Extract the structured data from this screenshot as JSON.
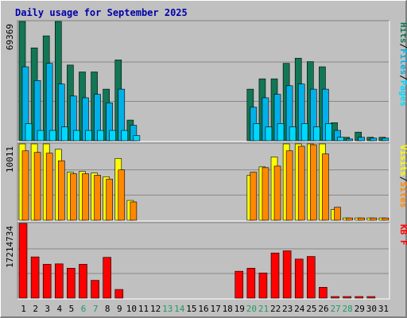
{
  "title": "Daily usage for September 2025",
  "colors": {
    "background": "#c0c0c0",
    "frame_light": "#ffffff",
    "frame_dark": "#808080",
    "plot_bg": "#c0c0c0",
    "gridline": "#888888",
    "title": "#0000aa",
    "weekday_label": "#000000",
    "weekend_label": "#229966",
    "hits": "#117755",
    "files": "#00b0e8",
    "pages": "#00d8ff",
    "visits": "#ffff00",
    "sites": "#ff8800",
    "kbytes": "#ff0000",
    "legend_separator": "#000000"
  },
  "chart_data": [
    {
      "type": "bar",
      "panel": "hits-files-pages",
      "ymax_label": "69369",
      "ylim": [
        0,
        69369
      ],
      "legend": [
        {
          "label": "Hits",
          "color_key": "hits"
        },
        {
          "label": "Files",
          "color_key": "files"
        },
        {
          "label": "Pages",
          "color_key": "pages"
        }
      ],
      "legend_separator": "/",
      "series": [
        {
          "name": "Hits",
          "values": [
            69369,
            54000,
            61000,
            69369,
            44000,
            40000,
            40000,
            30000,
            47000,
            12000,
            0,
            0,
            0,
            0,
            0,
            0,
            0,
            0,
            0,
            30000,
            36000,
            36000,
            45000,
            48000,
            46000,
            43000,
            10500,
            2000,
            5000,
            2000,
            2000
          ]
        },
        {
          "name": "Files",
          "values": [
            43000,
            35000,
            45000,
            33000,
            26000,
            25000,
            27000,
            22000,
            30000,
            9000,
            0,
            0,
            0,
            0,
            0,
            0,
            0,
            0,
            0,
            19500,
            25000,
            27000,
            32000,
            33000,
            30000,
            30000,
            6000,
            1000,
            2000,
            1500,
            1500
          ]
        },
        {
          "name": "Pages",
          "values": [
            10000,
            6000,
            6000,
            8000,
            6000,
            6000,
            6000,
            6000,
            6000,
            3000,
            0,
            0,
            0,
            0,
            0,
            0,
            0,
            0,
            0,
            10000,
            8000,
            10000,
            8000,
            10000,
            8000,
            10000,
            2000,
            0,
            0,
            0,
            0
          ]
        }
      ]
    },
    {
      "type": "bar",
      "panel": "visits-sites",
      "ymax_label": "10011",
      "ylim": [
        0,
        10011
      ],
      "legend": [
        {
          "label": "Visits",
          "color_key": "visits"
        },
        {
          "label": "Sites",
          "color_key": "sites"
        }
      ],
      "legend_separator": "/",
      "series": [
        {
          "name": "Visits",
          "values": [
            10011,
            10011,
            10011,
            9300,
            6300,
            6400,
            6200,
            5700,
            8100,
            2600,
            0,
            0,
            0,
            0,
            0,
            0,
            0,
            0,
            0,
            5900,
            7000,
            8300,
            10011,
            10011,
            10011,
            10011,
            1400,
            300,
            300,
            300,
            300
          ]
        },
        {
          "name": "Sites",
          "values": [
            9100,
            8900,
            8800,
            7800,
            6100,
            6100,
            5900,
            5400,
            6600,
            2400,
            0,
            0,
            0,
            0,
            0,
            0,
            0,
            0,
            0,
            6300,
            6900,
            7100,
            9100,
            9700,
            9900,
            8700,
            1700,
            300,
            300,
            300,
            300
          ]
        }
      ]
    },
    {
      "type": "bar",
      "panel": "kbytes",
      "ymax_label": "17214734",
      "ylim": [
        0,
        17214734
      ],
      "legend": [
        {
          "label": "KB F",
          "color_key": "kbytes"
        }
      ],
      "series": [
        {
          "name": "KB F",
          "values": [
            17214734,
            9500000,
            7800000,
            7900000,
            6900000,
            7800000,
            4100000,
            9400000,
            2000000,
            0,
            0,
            0,
            0,
            0,
            0,
            0,
            0,
            0,
            6200000,
            6900000,
            5800000,
            10400000,
            10900000,
            9000000,
            9600000,
            2500000,
            200000,
            200000,
            200000,
            200000,
            0
          ]
        }
      ]
    }
  ],
  "x_axis": {
    "days": [
      "1",
      "2",
      "3",
      "4",
      "5",
      "6",
      "7",
      "8",
      "9",
      "10",
      "11",
      "12",
      "13",
      "14",
      "15",
      "16",
      "17",
      "18",
      "19",
      "20",
      "21",
      "22",
      "23",
      "24",
      "25",
      "26",
      "27",
      "28",
      "29",
      "30",
      "31"
    ],
    "weekend_days": [
      "6",
      "7",
      "13",
      "14",
      "20",
      "21",
      "27",
      "28"
    ]
  }
}
